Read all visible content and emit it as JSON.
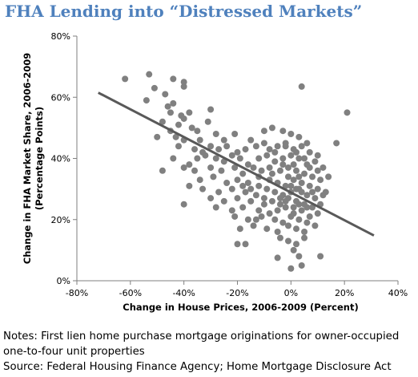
{
  "title": "FHA Lending into “Distressed Markets”",
  "notes": {
    "line1": "Notes: First lien home purchase mortgage originations for owner-occupied",
    "line2": "one-to-four unit properties",
    "line3": "Source: Federal Housing Finance Agency; Home Mortgage Disclosure Act"
  },
  "chart_data": {
    "type": "scatter",
    "xlabel": "Change in House Prices, 2006-2009 (Percent)",
    "ylabel_lines": [
      "Change in FHA Market Share, 2006-2009",
      "(Percentage Points)"
    ],
    "xlim": [
      -80,
      40
    ],
    "ylim": [
      0,
      80
    ],
    "x_ticks": [
      "-80%",
      "-60%",
      "-40%",
      "-20%",
      "0%",
      "20%",
      "40%"
    ],
    "y_ticks": [
      "0%",
      "20%",
      "40%",
      "60%",
      "80%"
    ],
    "x_tick_values": [
      -80,
      -60,
      -40,
      -20,
      0,
      20,
      40
    ],
    "y_tick_values": [
      0,
      20,
      40,
      60,
      80
    ],
    "grid": false,
    "colors": {
      "points": "#808080",
      "trendline": "#595959",
      "axis": "#7f7f7f"
    },
    "trendline": {
      "x": [
        -72,
        31
      ],
      "y": [
        61.5,
        14.8
      ]
    },
    "points": [
      [
        -62,
        66
      ],
      [
        -53,
        67.5
      ],
      [
        -51,
        63
      ],
      [
        -44,
        66
      ],
      [
        -40,
        65
      ],
      [
        -40,
        63.5
      ],
      [
        -54,
        59
      ],
      [
        -47,
        61
      ],
      [
        -44,
        58
      ],
      [
        4,
        63.5
      ],
      [
        21,
        55
      ],
      [
        -46,
        57
      ],
      [
        -45,
        55
      ],
      [
        -41,
        54
      ],
      [
        -40,
        53
      ],
      [
        -38,
        55
      ],
      [
        -30,
        56
      ],
      [
        -48,
        52
      ],
      [
        -42,
        51
      ],
      [
        -37,
        50
      ],
      [
        -35,
        49
      ],
      [
        -31,
        52
      ],
      [
        -45,
        49
      ],
      [
        -50,
        47
      ],
      [
        -43,
        47
      ],
      [
        -40,
        46
      ],
      [
        -34,
        46
      ],
      [
        -28,
        48
      ],
      [
        -25,
        46
      ],
      [
        -21,
        48
      ],
      [
        -15,
        46
      ],
      [
        -10,
        49
      ],
      [
        -7,
        50
      ],
      [
        -3,
        49
      ],
      [
        0,
        48
      ],
      [
        3,
        47
      ],
      [
        6,
        45
      ],
      [
        17,
        45
      ],
      [
        -42,
        44
      ],
      [
        -36,
        43
      ],
      [
        -33,
        42
      ],
      [
        -30,
        44
      ],
      [
        -27,
        43
      ],
      [
        -24,
        44
      ],
      [
        -20,
        42
      ],
      [
        -17,
        43
      ],
      [
        -13,
        44
      ],
      [
        -10,
        45
      ],
      [
        -8,
        43
      ],
      [
        -5,
        44
      ],
      [
        -2,
        45
      ],
      [
        1,
        43
      ],
      [
        4,
        44
      ],
      [
        7,
        42
      ],
      [
        10,
        41
      ],
      [
        -44,
        40
      ],
      [
        -38,
        38
      ],
      [
        -35,
        40
      ],
      [
        -32,
        41
      ],
      [
        -28,
        40
      ],
      [
        -25,
        39
      ],
      [
        -22,
        41
      ],
      [
        -19,
        40
      ],
      [
        -16,
        38
      ],
      [
        -12,
        40
      ],
      [
        -9,
        41
      ],
      [
        -6,
        39
      ],
      [
        -3,
        40
      ],
      [
        0,
        41
      ],
      [
        3,
        40
      ],
      [
        6,
        38
      ],
      [
        9,
        39
      ],
      [
        12,
        37
      ],
      [
        -40,
        37
      ],
      [
        -36,
        36
      ],
      [
        -30,
        37
      ],
      [
        -26,
        36
      ],
      [
        -21,
        37
      ],
      [
        -18,
        35
      ],
      [
        -14,
        37
      ],
      [
        -11,
        36
      ],
      [
        -7,
        35
      ],
      [
        -4,
        36
      ],
      [
        -1,
        37
      ],
      [
        2,
        36
      ],
      [
        5,
        35
      ],
      [
        8,
        34
      ],
      [
        11,
        33
      ],
      [
        14,
        34
      ],
      [
        -48,
        36
      ],
      [
        -34,
        33
      ],
      [
        -29,
        34
      ],
      [
        -24,
        32
      ],
      [
        -20,
        33
      ],
      [
        -16,
        32
      ],
      [
        -12,
        31
      ],
      [
        -8,
        33
      ],
      [
        -5,
        32
      ],
      [
        -2,
        31
      ],
      [
        1,
        33
      ],
      [
        4,
        32
      ],
      [
        7,
        31
      ],
      [
        10,
        30
      ],
      [
        13,
        29
      ],
      [
        -38,
        31
      ],
      [
        -33,
        30
      ],
      [
        -27,
        29
      ],
      [
        -22,
        30
      ],
      [
        -17,
        29
      ],
      [
        -13,
        28
      ],
      [
        -9,
        30
      ],
      [
        -6,
        29
      ],
      [
        -3,
        28
      ],
      [
        0,
        29
      ],
      [
        3,
        30
      ],
      [
        6,
        28
      ],
      [
        9,
        27
      ],
      [
        12,
        28
      ],
      [
        -30,
        27
      ],
      [
        -25,
        26
      ],
      [
        -20,
        27
      ],
      [
        -15,
        26
      ],
      [
        -10,
        27
      ],
      [
        -7,
        26
      ],
      [
        -4,
        25
      ],
      [
        -1,
        27
      ],
      [
        2,
        26
      ],
      [
        5,
        25
      ],
      [
        8,
        24
      ],
      [
        11,
        25
      ],
      [
        -40,
        25
      ],
      [
        -28,
        24
      ],
      [
        -22,
        23
      ],
      [
        -18,
        24
      ],
      [
        -12,
        23
      ],
      [
        -8,
        22
      ],
      [
        -5,
        23
      ],
      [
        -2,
        24
      ],
      [
        1,
        22
      ],
      [
        4,
        23
      ],
      [
        7,
        21
      ],
      [
        10,
        22
      ],
      [
        -21,
        21
      ],
      [
        -16,
        20
      ],
      [
        -11,
        21
      ],
      [
        -6,
        20
      ],
      [
        -3,
        19
      ],
      [
        0,
        21
      ],
      [
        3,
        20
      ],
      [
        6,
        19
      ],
      [
        9,
        18
      ],
      [
        -19,
        17
      ],
      [
        -14,
        18
      ],
      [
        -9,
        17
      ],
      [
        -5,
        16
      ],
      [
        -1,
        18
      ],
      [
        2,
        17
      ],
      [
        5,
        16
      ],
      [
        -20,
        12
      ],
      [
        -17,
        12
      ],
      [
        -4,
        14
      ],
      [
        -1,
        13
      ],
      [
        2,
        12
      ],
      [
        5,
        14
      ],
      [
        -5,
        7.5
      ],
      [
        1,
        10
      ],
      [
        3,
        8
      ],
      [
        4,
        5
      ],
      [
        11,
        8
      ],
      [
        0,
        4
      ],
      [
        -2,
        44
      ],
      [
        2,
        42
      ],
      [
        -6,
        42
      ],
      [
        5,
        40
      ],
      [
        1,
        38
      ],
      [
        -3,
        38
      ],
      [
        3,
        34
      ],
      [
        -1,
        34
      ],
      [
        0,
        31
      ],
      [
        2,
        30
      ],
      [
        4,
        29
      ],
      [
        -2,
        26
      ],
      [
        1,
        24
      ],
      [
        3,
        25
      ],
      [
        6,
        24
      ],
      [
        -4,
        27
      ],
      [
        8,
        29
      ],
      [
        -8,
        37
      ],
      [
        -12,
        34
      ],
      [
        -15,
        30
      ],
      [
        -18,
        31
      ],
      [
        -10,
        25
      ],
      [
        -13,
        20
      ],
      [
        7,
        37
      ],
      [
        10,
        36
      ]
    ]
  }
}
